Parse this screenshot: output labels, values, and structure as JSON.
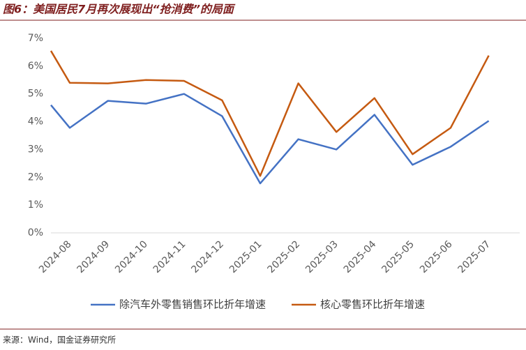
{
  "chart_data": {
    "type": "line",
    "title": "图6：美国居民7月再次展现出“抢消费”的局面",
    "source": "来源：Wind，国金证券研究所",
    "categories": [
      null,
      "2024-08",
      "2024-09",
      "2024-10",
      "2024-11",
      "2024-12",
      "2025-01",
      "2025-02",
      "2025-03",
      "2025-04",
      "2025-05",
      "2025-06",
      "2025-07"
    ],
    "series": [
      {
        "name": "除汽车外零售销售环比折年增速",
        "color": "#4472c4",
        "values": [
          4.6,
          3.78,
          4.75,
          4.65,
          5.0,
          4.2,
          1.78,
          3.37,
          3.0,
          4.25,
          2.45,
          3.1,
          4.03
        ]
      },
      {
        "name": "核心零售环比折年增速",
        "color": "#c55a11",
        "values": [
          6.55,
          5.4,
          5.38,
          5.5,
          5.47,
          4.77,
          2.05,
          5.38,
          3.63,
          4.85,
          2.83,
          3.78,
          6.38
        ]
      }
    ],
    "ylim": [
      0,
      7
    ],
    "yticks": [
      {
        "value": 0,
        "label": "0%"
      },
      {
        "value": 1,
        "label": "1%"
      },
      {
        "value": 2,
        "label": "2%"
      },
      {
        "value": 3,
        "label": "3%"
      },
      {
        "value": 4,
        "label": "4%"
      },
      {
        "value": 5,
        "label": "5%"
      },
      {
        "value": 6,
        "label": "6%"
      },
      {
        "value": 7,
        "label": "7%"
      }
    ],
    "legend": "bottom"
  }
}
